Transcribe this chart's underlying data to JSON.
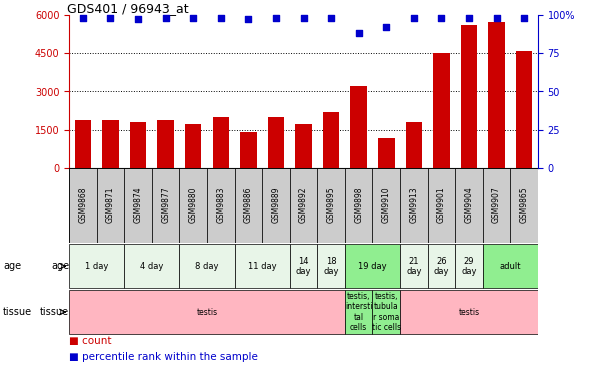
{
  "title": "GDS401 / 96943_at",
  "samples": [
    "GSM9868",
    "GSM9871",
    "GSM9874",
    "GSM9877",
    "GSM9880",
    "GSM9883",
    "GSM9886",
    "GSM9889",
    "GSM9892",
    "GSM9895",
    "GSM9898",
    "GSM9910",
    "GSM9913",
    "GSM9901",
    "GSM9904",
    "GSM9907",
    "GSM9865"
  ],
  "counts": [
    1900,
    1900,
    1800,
    1900,
    1750,
    2000,
    1400,
    2000,
    1750,
    2200,
    3200,
    1200,
    1800,
    4500,
    5600,
    5700,
    4600
  ],
  "percentiles": [
    98,
    98,
    97,
    98,
    98,
    98,
    97,
    98,
    98,
    98,
    88,
    92,
    98,
    98,
    98,
    98,
    98
  ],
  "ylim_left": [
    0,
    6000
  ],
  "ylim_right": [
    0,
    100
  ],
  "yticks_left": [
    0,
    1500,
    3000,
    4500,
    6000
  ],
  "yticks_right": [
    0,
    25,
    50,
    75,
    100
  ],
  "age_groups": [
    {
      "label": "1 day",
      "start": 0,
      "end": 2,
      "color": "#e8f5e8"
    },
    {
      "label": "4 day",
      "start": 2,
      "end": 4,
      "color": "#e8f5e8"
    },
    {
      "label": "8 day",
      "start": 4,
      "end": 6,
      "color": "#e8f5e8"
    },
    {
      "label": "11 day",
      "start": 6,
      "end": 8,
      "color": "#e8f5e8"
    },
    {
      "label": "14\nday",
      "start": 8,
      "end": 9,
      "color": "#e8f5e8"
    },
    {
      "label": "18\nday",
      "start": 9,
      "end": 10,
      "color": "#e8f5e8"
    },
    {
      "label": "19 day",
      "start": 10,
      "end": 12,
      "color": "#90ee90"
    },
    {
      "label": "21\nday",
      "start": 12,
      "end": 13,
      "color": "#e8f5e8"
    },
    {
      "label": "26\nday",
      "start": 13,
      "end": 14,
      "color": "#e8f5e8"
    },
    {
      "label": "29\nday",
      "start": 14,
      "end": 15,
      "color": "#e8f5e8"
    },
    {
      "label": "adult",
      "start": 15,
      "end": 17,
      "color": "#90ee90"
    }
  ],
  "tissue_groups": [
    {
      "label": "testis",
      "start": 0,
      "end": 10,
      "color": "#ffb6c1"
    },
    {
      "label": "testis,\nintersti\ntal\ncells",
      "start": 10,
      "end": 11,
      "color": "#90ee90"
    },
    {
      "label": "testis,\ntubula\nr soma\ntic cells",
      "start": 11,
      "end": 12,
      "color": "#90ee90"
    },
    {
      "label": "testis",
      "start": 12,
      "end": 17,
      "color": "#ffb6c1"
    }
  ],
  "bar_color": "#cc0000",
  "dot_color": "#0000cc",
  "sample_box_color": "#cccccc",
  "bg_color": "#ffffff",
  "title_color": "#000000",
  "left_axis_color": "#cc0000",
  "right_axis_color": "#0000cc"
}
